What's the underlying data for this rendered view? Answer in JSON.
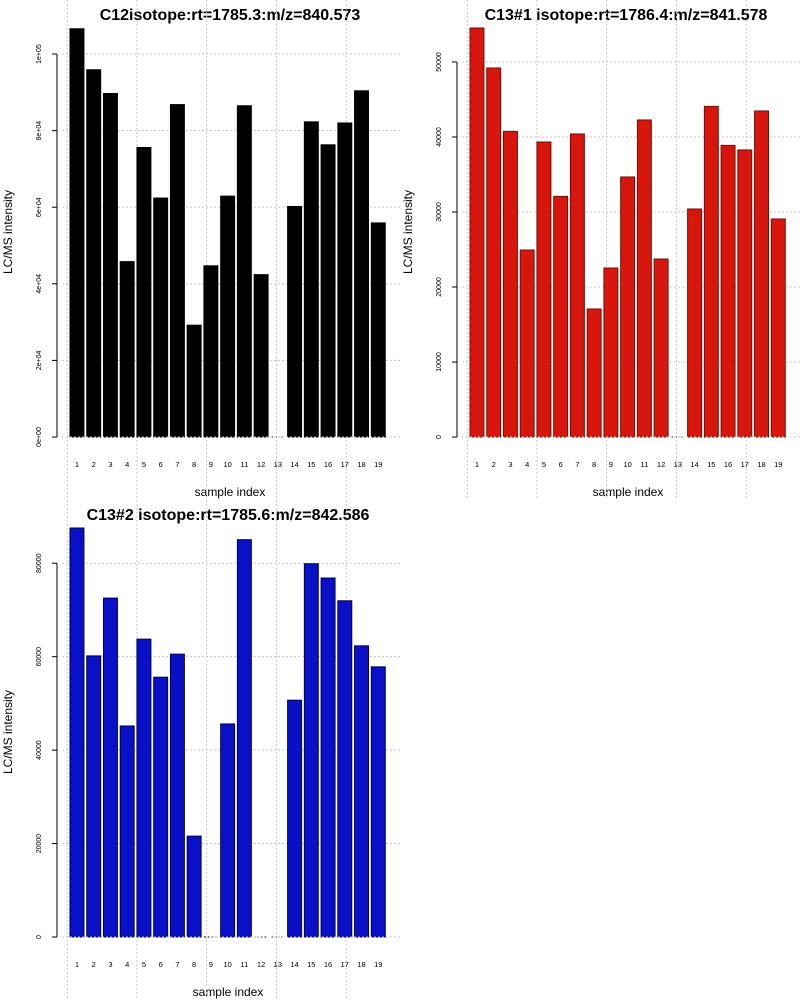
{
  "chart_data": [
    {
      "type": "bar",
      "title": "C12isotope:rt=1785.3:m/z=840.573",
      "xlabel": "sample index",
      "ylabel": "LC/MS intensity",
      "categories": [
        "1",
        "2",
        "3",
        "4",
        "5",
        "6",
        "7",
        "8",
        "9",
        "10",
        "11",
        "12",
        "13",
        "14",
        "15",
        "16",
        "17",
        "18",
        "19"
      ],
      "values": [
        106600,
        95900,
        89700,
        45800,
        75600,
        62400,
        86800,
        29200,
        44700,
        62900,
        86500,
        42400,
        0,
        60200,
        82300,
        76300,
        82000,
        90400,
        55900
      ],
      "ylim": [
        0,
        106800
      ],
      "yticks": [
        0,
        20000,
        40000,
        60000,
        80000,
        100000
      ],
      "ytick_labels": [
        "0e+00",
        "2e+04",
        "4e+04",
        "6e+04",
        "8e+04",
        "1e+05"
      ],
      "grid": true,
      "color": "#000000",
      "border": "#000000"
    },
    {
      "type": "bar",
      "title": "C13#1 isotope:rt=1786.4:m/z=841.578",
      "xlabel": "sample index",
      "ylabel": "LC/MS intensity",
      "categories": [
        "1",
        "2",
        "3",
        "4",
        "5",
        "6",
        "7",
        "8",
        "9",
        "10",
        "11",
        "12",
        "13",
        "14",
        "15",
        "16",
        "17",
        "18",
        "19"
      ],
      "values": [
        54530,
        49200,
        40750,
        24930,
        39330,
        32080,
        40400,
        17070,
        22530,
        34670,
        42270,
        23730,
        0,
        30400,
        44080,
        38880,
        38270,
        43470,
        29070
      ],
      "ylim": [
        0,
        54530
      ],
      "yticks": [
        0,
        10000,
        20000,
        30000,
        40000,
        50000
      ],
      "ytick_labels": [
        "0",
        "10000",
        "20000",
        "30000",
        "40000",
        "50000"
      ],
      "grid": true,
      "color": "#d8160e",
      "border": "#6e1008"
    },
    {
      "type": "bar",
      "title": "C13#2 isotope:rt=1785.6:m/z=842.586",
      "xlabel": "sample index",
      "ylabel": "LC/MS intensity",
      "categories": [
        "1",
        "2",
        "3",
        "4",
        "5",
        "6",
        "7",
        "8",
        "9",
        "10",
        "11",
        "12",
        "13",
        "14",
        "15",
        "16",
        "17",
        "18",
        "19"
      ],
      "values": [
        87540,
        60170,
        72540,
        45170,
        63750,
        55610,
        60540,
        21590,
        0,
        45600,
        85040,
        0,
        0,
        50680,
        79890,
        76830,
        71960,
        62320,
        57820
      ],
      "ylim": [
        0,
        87540
      ],
      "yticks": [
        0,
        20000,
        40000,
        60000,
        80000
      ],
      "ytick_labels": [
        "0",
        "20000",
        "40000",
        "60000",
        "80000"
      ],
      "grid": true,
      "color": "#0a10c8",
      "border": "#00004a"
    }
  ]
}
